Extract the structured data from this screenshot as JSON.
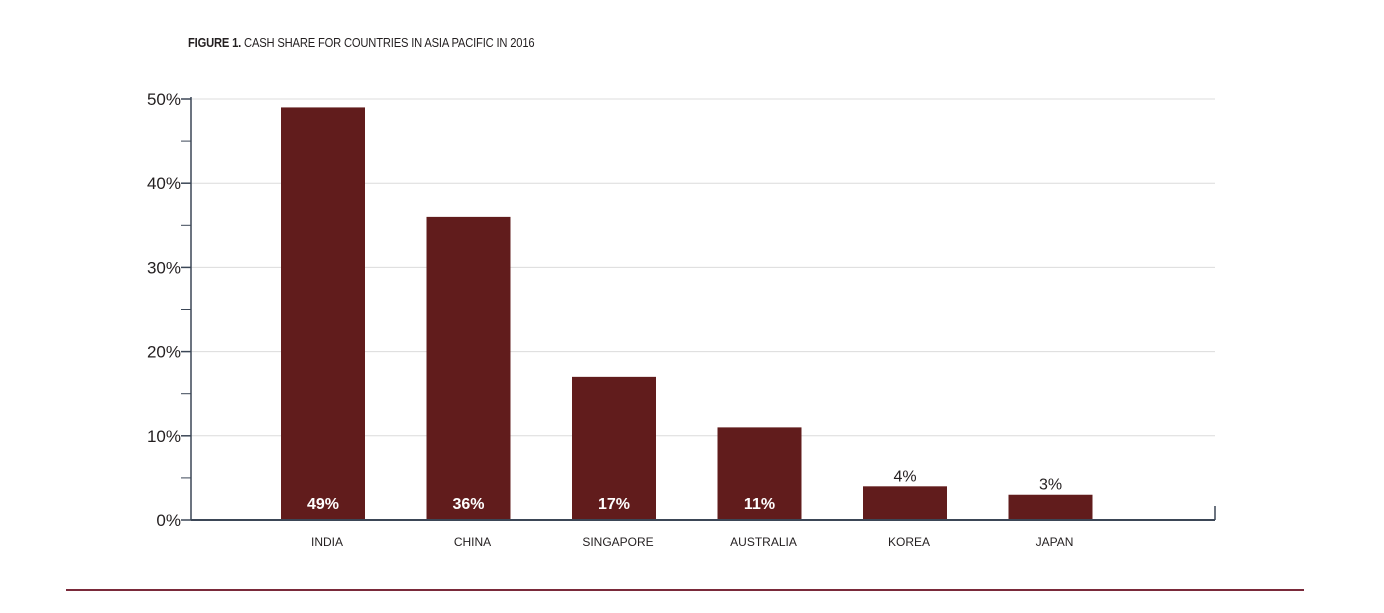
{
  "title": {
    "prefix": "FIGURE 1.",
    "text": "CASH SHARE FOR COUNTRIES IN ASIA PACIFIC IN 2016"
  },
  "colors": {
    "bar": "#611c1c",
    "axis": "#3b4656",
    "grid": "#dcdcdc",
    "rule": "#7a2a3a"
  },
  "chart_data": {
    "type": "bar",
    "title": "FIGURE 1. CASH SHARE FOR COUNTRIES IN ASIA PACIFIC IN 2016",
    "xlabel": "",
    "ylabel": "",
    "categories": [
      "INDIA",
      "CHINA",
      "SINGAPORE",
      "AUSTRALIA",
      "KOREA",
      "JAPAN"
    ],
    "values": [
      49,
      36,
      17,
      11,
      4,
      3
    ],
    "data_labels": [
      "49%",
      "36%",
      "17%",
      "11%",
      "4%",
      "3%"
    ],
    "y_ticks": [
      "0%",
      "10%",
      "20%",
      "30%",
      "40%",
      "50%"
    ],
    "ylim": [
      0,
      50
    ],
    "grid": true,
    "legend": "none"
  }
}
